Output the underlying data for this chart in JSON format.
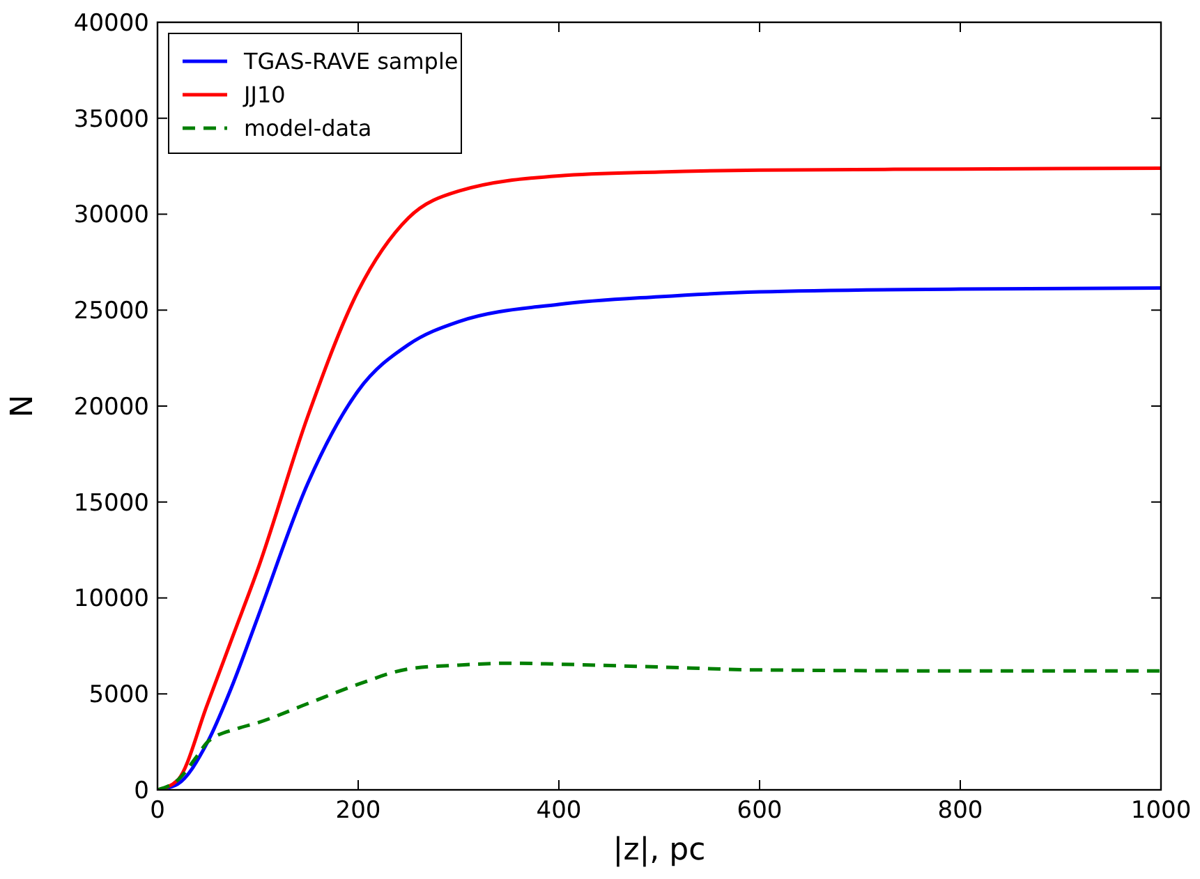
{
  "chart_data": {
    "type": "line",
    "xlabel": "|z|, pc",
    "ylabel": "N",
    "xlim": [
      0,
      1000
    ],
    "ylim": [
      0,
      40000
    ],
    "xticks": [
      0,
      200,
      400,
      600,
      800,
      1000
    ],
    "yticks": [
      0,
      5000,
      10000,
      15000,
      20000,
      25000,
      30000,
      35000,
      40000
    ],
    "grid": false,
    "legend": "top left",
    "x": [
      0,
      20,
      50,
      75,
      100,
      150,
      200,
      250,
      300,
      400,
      500,
      600,
      800,
      1000
    ],
    "series": [
      {
        "name": "TGAS-RAVE sample",
        "color": "#0000ff",
        "line_style": "solid",
        "values": [
          0,
          300,
          2500,
          5500,
          9000,
          16000,
          20800,
          23200,
          24400,
          25300,
          25700,
          25950,
          26100,
          26150
        ]
      },
      {
        "name": "JJ10",
        "color": "#ff0000",
        "line_style": "solid",
        "values": [
          0,
          500,
          4500,
          8000,
          11500,
          19500,
          26000,
          29800,
          31200,
          32000,
          32200,
          32300,
          32350,
          32400
        ]
      },
      {
        "name": "model-data",
        "color": "#007f00",
        "line_style": "dashed",
        "x": [
          0,
          20,
          40,
          50,
          80,
          100,
          150,
          200,
          250,
          300,
          350,
          400,
          500,
          600,
          800,
          1000
        ],
        "values": [
          0,
          500,
          1800,
          2500,
          3200,
          3500,
          4500,
          5500,
          6300,
          6500,
          6600,
          6550,
          6400,
          6250,
          6200,
          6200
        ]
      }
    ]
  }
}
